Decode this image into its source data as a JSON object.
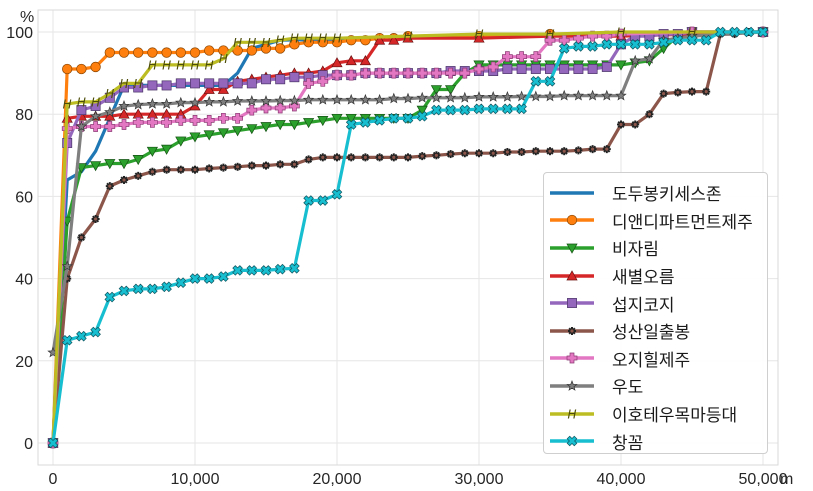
{
  "chart_data": {
    "type": "line",
    "title": "",
    "xlabel": "m",
    "ylabel": "%",
    "xlim": [
      -1000,
      51000
    ],
    "ylim": [
      -5,
      102
    ],
    "x_ticks": [
      0,
      10000,
      20000,
      30000,
      40000,
      50000
    ],
    "x_tick_labels": [
      "0",
      "10,000",
      "20,000",
      "30,000",
      "40,000",
      "50,000"
    ],
    "y_ticks": [
      0,
      20,
      40,
      60,
      80,
      100
    ],
    "y_tick_labels": [
      "0",
      "20",
      "40",
      "60",
      "80",
      "100"
    ],
    "grid": true,
    "legend_position": "lower right",
    "series": [
      {
        "name": "도두봉키세스존",
        "color": "#1f77b4",
        "marker": "none",
        "x": [
          0,
          1000,
          2000,
          3000,
          4000,
          5000,
          12000,
          13000,
          14000,
          15000,
          16000,
          50000
        ],
        "y": [
          0,
          64,
          66,
          71,
          79,
          87,
          87,
          90,
          96,
          97,
          98,
          100
        ]
      },
      {
        "name": "디앤디파트먼트제주",
        "color": "#ff7f0e",
        "marker": "circle",
        "x": [
          0,
          1000,
          2000,
          3000,
          4000,
          5000,
          6000,
          7000,
          8000,
          9000,
          10000,
          11000,
          12000,
          13000,
          14000,
          15000,
          16000,
          17000,
          18000,
          19000,
          20000,
          21000,
          22000,
          23000,
          24000,
          25000,
          30000,
          35000,
          40000,
          45000,
          50000
        ],
        "y": [
          0,
          91,
          91,
          91.5,
          95,
          95,
          95,
          95,
          95,
          95,
          95,
          95.5,
          95.5,
          95.5,
          95.5,
          96,
          96,
          97,
          97.5,
          97.5,
          97.5,
          98,
          98,
          98.5,
          98.5,
          99,
          99,
          99.5,
          99.5,
          100,
          100
        ]
      },
      {
        "name": "비자림",
        "color": "#2ca02c",
        "marker": "triangle-down",
        "x": [
          0,
          1000,
          2000,
          3000,
          4000,
          5000,
          6000,
          7000,
          8000,
          9000,
          10000,
          11000,
          12000,
          13000,
          14000,
          15000,
          16000,
          17000,
          18000,
          19000,
          20000,
          21000,
          22000,
          23000,
          24000,
          25000,
          26000,
          27000,
          28000,
          29000,
          30000,
          31000,
          32000,
          33000,
          34000,
          35000,
          36000,
          37000,
          38000,
          39000,
          40000,
          41000,
          42000,
          43000,
          44000,
          45000,
          50000
        ],
        "y": [
          0,
          54,
          67,
          67.5,
          68,
          68,
          69,
          71,
          71.5,
          73.5,
          74.5,
          75,
          75.5,
          76,
          76.5,
          77,
          77.5,
          77.5,
          78,
          78.5,
          79,
          79,
          79,
          79,
          79,
          79,
          81,
          86,
          86,
          90,
          92,
          92,
          92,
          92,
          92,
          92,
          92,
          92,
          92,
          92,
          92,
          92.5,
          93,
          96,
          99,
          100,
          100
        ]
      },
      {
        "name": "새별오름",
        "color": "#d62728",
        "marker": "triangle-up",
        "x": [
          0,
          1000,
          2000,
          3000,
          4000,
          5000,
          6000,
          7000,
          8000,
          9000,
          10000,
          11000,
          12000,
          13000,
          14000,
          15000,
          16000,
          17000,
          18000,
          19000,
          20000,
          21000,
          22000,
          23000,
          24000,
          25000,
          30000,
          35000,
          40000,
          45000,
          50000
        ],
        "y": [
          0,
          79,
          79.5,
          79.5,
          79.5,
          80,
          80,
          80,
          80,
          80,
          82,
          86,
          86,
          88,
          88.5,
          89,
          89.5,
          90,
          90,
          90.5,
          92.5,
          93,
          93,
          98,
          98,
          98.5,
          98.5,
          99,
          99,
          99.5,
          100
        ]
      },
      {
        "name": "섭지코지",
        "color": "#9467bd",
        "marker": "square",
        "x": [
          0,
          1000,
          2000,
          3000,
          4000,
          5000,
          6000,
          7000,
          8000,
          9000,
          10000,
          11000,
          12000,
          13000,
          14000,
          15000,
          16000,
          17000,
          18000,
          19000,
          20000,
          21000,
          22000,
          23000,
          24000,
          25000,
          26000,
          27000,
          28000,
          29000,
          30000,
          31000,
          32000,
          33000,
          34000,
          35000,
          36000,
          37000,
          38000,
          39000,
          40000,
          41000,
          42000,
          43000,
          44000,
          45000,
          50000
        ],
        "y": [
          0,
          73,
          81,
          82,
          84,
          86.5,
          86.5,
          87,
          87,
          87.5,
          87.5,
          87.5,
          87.5,
          87.5,
          87.5,
          88.5,
          88.5,
          89,
          89,
          89.5,
          89.5,
          89.5,
          90,
          90,
          90,
          90,
          90,
          90,
          90.5,
          90.5,
          90.5,
          90.5,
          91,
          91,
          91,
          91,
          91,
          91,
          91,
          91.5,
          97,
          99,
          99,
          99.5,
          99.5,
          100,
          100
        ]
      },
      {
        "name": "성산일출봉",
        "color": "#8c564b",
        "marker": "asterisk",
        "x": [
          0,
          1000,
          2000,
          3000,
          4000,
          5000,
          6000,
          7000,
          8000,
          9000,
          10000,
          11000,
          12000,
          13000,
          14000,
          15000,
          16000,
          17000,
          18000,
          19000,
          20000,
          21000,
          22000,
          23000,
          24000,
          25000,
          26000,
          27000,
          28000,
          29000,
          30000,
          31000,
          32000,
          33000,
          34000,
          35000,
          36000,
          37000,
          38000,
          39000,
          40000,
          41000,
          42000,
          43000,
          44000,
          45000,
          46000,
          47000,
          48000,
          49000,
          50000
        ],
        "y": [
          0,
          40,
          50,
          54.5,
          62.5,
          64,
          65,
          66,
          66.5,
          66.5,
          66.5,
          66.8,
          67,
          67.2,
          67.5,
          67.5,
          67.8,
          67.8,
          69,
          69.5,
          69.5,
          69.5,
          69.5,
          69.5,
          69.5,
          69.5,
          69.8,
          70,
          70.3,
          70.5,
          70.5,
          70.5,
          70.8,
          70.8,
          71,
          71,
          71,
          71.2,
          71.5,
          71.5,
          77.5,
          77.5,
          80,
          85,
          85.3,
          85.5,
          85.5,
          99.5,
          99.5,
          100,
          100
        ]
      },
      {
        "name": "오지힐제주",
        "color": "#e377c2",
        "marker": "plus",
        "x": [
          0,
          1000,
          2000,
          3000,
          4000,
          5000,
          6000,
          7000,
          8000,
          9000,
          10000,
          11000,
          12000,
          13000,
          14000,
          15000,
          16000,
          17000,
          18000,
          19000,
          20000,
          21000,
          22000,
          23000,
          24000,
          25000,
          26000,
          27000,
          28000,
          29000,
          30000,
          31000,
          32000,
          33000,
          34000,
          35000,
          36000,
          37000,
          38000,
          39000,
          40000,
          45000,
          50000
        ],
        "y": [
          0,
          76.5,
          77,
          77,
          77,
          77.5,
          78,
          78,
          78,
          78.5,
          78.5,
          78.5,
          79,
          79,
          81,
          81.5,
          81.5,
          82,
          87.5,
          88,
          89.5,
          89.5,
          90,
          90,
          90,
          90,
          90,
          90,
          90,
          90,
          91,
          91.5,
          94,
          94,
          94,
          98,
          98,
          98.5,
          99,
          99,
          99.5,
          100,
          100
        ]
      },
      {
        "name": "우도",
        "color": "#7f7f7f",
        "marker": "star",
        "x": [
          0,
          1000,
          2000,
          3000,
          4000,
          5000,
          6000,
          7000,
          8000,
          9000,
          10000,
          11000,
          12000,
          13000,
          14000,
          15000,
          16000,
          17000,
          18000,
          19000,
          20000,
          21000,
          22000,
          23000,
          24000,
          25000,
          26000,
          27000,
          28000,
          29000,
          30000,
          31000,
          32000,
          33000,
          34000,
          35000,
          36000,
          37000,
          38000,
          39000,
          40000,
          41000,
          42000,
          43000,
          44000,
          45000,
          50000
        ],
        "y": [
          22,
          43,
          77,
          79.5,
          80.5,
          82,
          82.3,
          82.5,
          82.5,
          82.8,
          82.8,
          83,
          83,
          83.2,
          83.2,
          83.2,
          83.3,
          83.3,
          83.5,
          83.5,
          83.5,
          83.5,
          83.5,
          83.5,
          83.8,
          83.8,
          84,
          84,
          84,
          84,
          84.2,
          84.2,
          84.2,
          84.3,
          84.3,
          84.3,
          84.5,
          84.5,
          84.5,
          84.5,
          84.5,
          93,
          93.5,
          98,
          98.5,
          99,
          100
        ]
      },
      {
        "name": "이호테우목마등대",
        "color": "#bcbd22",
        "marker": "H",
        "x": [
          0,
          1000,
          2000,
          3000,
          4000,
          5000,
          6000,
          7000,
          8000,
          9000,
          10000,
          11000,
          12000,
          13000,
          14000,
          15000,
          16000,
          17000,
          18000,
          19000,
          20000,
          25000,
          30000,
          35000,
          40000,
          45000,
          50000
        ],
        "y": [
          0,
          82.5,
          83,
          83,
          85,
          87.5,
          87.5,
          92,
          92,
          92,
          92,
          92,
          93.5,
          97.5,
          97.5,
          97.5,
          98,
          98.5,
          98.5,
          98.5,
          98.5,
          99,
          99.5,
          99.5,
          100,
          100,
          100
        ]
      },
      {
        "name": "창꼼",
        "color": "#17becf",
        "marker": "x-filled",
        "x": [
          0,
          1000,
          2000,
          3000,
          4000,
          5000,
          6000,
          7000,
          8000,
          9000,
          10000,
          11000,
          12000,
          13000,
          14000,
          15000,
          16000,
          17000,
          18000,
          19000,
          20000,
          21000,
          22000,
          23000,
          24000,
          25000,
          26000,
          27000,
          28000,
          29000,
          30000,
          31000,
          32000,
          33000,
          34000,
          35000,
          36000,
          37000,
          38000,
          39000,
          40000,
          41000,
          42000,
          43000,
          44000,
          45000,
          46000,
          47000,
          48000,
          49000,
          50000
        ],
        "y": [
          0,
          25,
          26,
          27,
          35.5,
          37,
          37.5,
          37.5,
          38,
          39,
          40,
          40,
          40.5,
          42,
          42,
          42,
          42.3,
          42.5,
          59,
          59,
          60.5,
          77.5,
          78,
          78.5,
          79,
          79,
          79.5,
          81,
          81,
          81,
          81.3,
          81.3,
          81.3,
          81.3,
          88,
          88,
          96,
          96.5,
          96.5,
          97,
          97,
          97,
          97,
          97.5,
          98,
          98,
          98,
          100,
          100,
          100,
          100
        ]
      }
    ]
  },
  "legend": {
    "items": [
      {
        "label": "도두봉키세스존"
      },
      {
        "label": "디앤디파트먼트제주"
      },
      {
        "label": "비자림"
      },
      {
        "label": "새별오름"
      },
      {
        "label": "섭지코지"
      },
      {
        "label": "성산일출봉"
      },
      {
        "label": "오지힐제주"
      },
      {
        "label": "우도"
      },
      {
        "label": "이호테우목마등대"
      },
      {
        "label": "창꼼"
      }
    ]
  }
}
